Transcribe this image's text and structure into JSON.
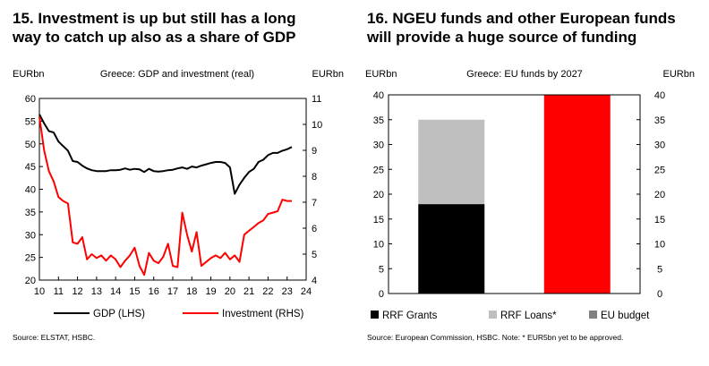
{
  "left_panel": {
    "title_line1": "15. Investment is up but still has a long",
    "title_line2": "way to catch up also as a share of GDP",
    "source": "Source: ELSTAT, HSBC."
  },
  "right_panel": {
    "title_line1": "16. NGEU funds and other European funds",
    "title_line2": "will provide a huge source of funding",
    "source": "Source: European Commission, HSBC. Note: * EUR5bn yet to be approved."
  },
  "chart_data": [
    {
      "type": "line",
      "title": "Greece: GDP and investment (real)",
      "ylabel_left": "EURbn",
      "ylabel_right": "EURbn",
      "ylim_left": [
        20,
        60
      ],
      "ylim_right": [
        4,
        11
      ],
      "xlim": [
        10,
        24
      ],
      "x_ticks": [
        "10",
        "11",
        "12",
        "13",
        "14",
        "15",
        "16",
        "17",
        "18",
        "19",
        "20",
        "21",
        "22",
        "23",
        "24"
      ],
      "y_ticks_left": [
        "20",
        "25",
        "30",
        "35",
        "40",
        "45",
        "50",
        "55",
        "60"
      ],
      "y_ticks_right": [
        "4",
        "5",
        "6",
        "7",
        "8",
        "9",
        "10",
        "11"
      ],
      "legend_position": "bottom",
      "series": [
        {
          "name": "GDP (LHS)",
          "axis": "left",
          "color": "#000000",
          "points": [
            [
              10.0,
              56.5
            ],
            [
              10.25,
              54.5
            ],
            [
              10.5,
              52.8
            ],
            [
              10.75,
              52.5
            ],
            [
              11.0,
              50.5
            ],
            [
              11.25,
              49.5
            ],
            [
              11.5,
              48.5
            ],
            [
              11.75,
              46.2
            ],
            [
              12.0,
              46.0
            ],
            [
              12.25,
              45.2
            ],
            [
              12.5,
              44.6
            ],
            [
              12.75,
              44.2
            ],
            [
              13.0,
              44.0
            ],
            [
              13.25,
              44.0
            ],
            [
              13.5,
              44.0
            ],
            [
              13.75,
              44.2
            ],
            [
              14.0,
              44.2
            ],
            [
              14.25,
              44.3
            ],
            [
              14.5,
              44.6
            ],
            [
              14.75,
              44.3
            ],
            [
              15.0,
              44.5
            ],
            [
              15.25,
              44.4
            ],
            [
              15.5,
              43.8
            ],
            [
              15.75,
              44.5
            ],
            [
              16.0,
              44.0
            ],
            [
              16.25,
              43.9
            ],
            [
              16.5,
              44.0
            ],
            [
              16.75,
              44.2
            ],
            [
              17.0,
              44.3
            ],
            [
              17.25,
              44.6
            ],
            [
              17.5,
              44.8
            ],
            [
              17.75,
              44.5
            ],
            [
              18.0,
              45.0
            ],
            [
              18.25,
              44.8
            ],
            [
              18.5,
              45.2
            ],
            [
              18.75,
              45.5
            ],
            [
              19.0,
              45.8
            ],
            [
              19.25,
              46.0
            ],
            [
              19.5,
              46.0
            ],
            [
              19.75,
              45.8
            ],
            [
              20.0,
              44.8
            ],
            [
              20.25,
              39.0
            ],
            [
              20.5,
              41.0
            ],
            [
              20.75,
              42.5
            ],
            [
              21.0,
              43.8
            ],
            [
              21.25,
              44.5
            ],
            [
              21.5,
              46.0
            ],
            [
              21.75,
              46.5
            ],
            [
              22.0,
              47.5
            ],
            [
              22.25,
              48.0
            ],
            [
              22.5,
              48.0
            ],
            [
              22.75,
              48.5
            ],
            [
              23.0,
              48.8
            ],
            [
              23.25,
              49.3
            ]
          ]
        },
        {
          "name": "Investment (RHS)",
          "axis": "right",
          "color": "#ff0000",
          "points": [
            [
              10.0,
              10.3
            ],
            [
              10.25,
              9.0
            ],
            [
              10.5,
              8.2
            ],
            [
              10.75,
              7.8
            ],
            [
              11.0,
              7.2
            ],
            [
              11.25,
              7.05
            ],
            [
              11.5,
              6.95
            ],
            [
              11.75,
              5.45
            ],
            [
              12.0,
              5.4
            ],
            [
              12.25,
              5.65
            ],
            [
              12.5,
              4.8
            ],
            [
              12.75,
              5.0
            ],
            [
              13.0,
              4.85
            ],
            [
              13.25,
              4.95
            ],
            [
              13.5,
              4.75
            ],
            [
              13.75,
              4.95
            ],
            [
              14.0,
              4.8
            ],
            [
              14.25,
              4.5
            ],
            [
              14.5,
              4.75
            ],
            [
              14.75,
              4.95
            ],
            [
              15.0,
              5.25
            ],
            [
              15.25,
              4.55
            ],
            [
              15.5,
              4.2
            ],
            [
              15.75,
              5.05
            ],
            [
              16.0,
              4.75
            ],
            [
              16.25,
              4.65
            ],
            [
              16.5,
              4.9
            ],
            [
              16.75,
              5.4
            ],
            [
              17.0,
              4.55
            ],
            [
              17.25,
              4.5
            ],
            [
              17.5,
              6.6
            ],
            [
              17.75,
              5.75
            ],
            [
              18.0,
              5.1
            ],
            [
              18.25,
              5.85
            ],
            [
              18.5,
              4.55
            ],
            [
              18.75,
              4.7
            ],
            [
              19.0,
              4.85
            ],
            [
              19.25,
              4.95
            ],
            [
              19.5,
              4.85
            ],
            [
              19.75,
              5.05
            ],
            [
              20.0,
              4.8
            ],
            [
              20.25,
              4.95
            ],
            [
              20.5,
              4.7
            ],
            [
              20.75,
              5.75
            ],
            [
              21.0,
              5.9
            ],
            [
              21.25,
              6.05
            ],
            [
              21.5,
              6.2
            ],
            [
              21.75,
              6.3
            ],
            [
              22.0,
              6.55
            ],
            [
              22.25,
              6.6
            ],
            [
              22.5,
              6.65
            ],
            [
              22.75,
              7.1
            ],
            [
              23.0,
              7.05
            ],
            [
              23.25,
              7.05
            ]
          ]
        }
      ]
    },
    {
      "type": "bar",
      "title": "Greece: EU funds by 2027",
      "ylabel_left": "EURbn",
      "ylabel_right": "EURbn",
      "ylim": [
        0,
        40
      ],
      "y_ticks": [
        "0",
        "5",
        "10",
        "15",
        "20",
        "25",
        "30",
        "35",
        "40"
      ],
      "stacked": true,
      "legend_position": "bottom",
      "bars": [
        {
          "segments": [
            {
              "series": "RRF Grants",
              "value": 18
            },
            {
              "series": "RRF Loans*",
              "value": 17
            }
          ]
        },
        {
          "segments": [
            {
              "series": "EU budget",
              "value": 40
            }
          ]
        }
      ],
      "series": [
        {
          "name": "RRF Grants",
          "color": "#000000"
        },
        {
          "name": "RRF Loans*",
          "color": "#bfbfbf"
        },
        {
          "name": "EU budget",
          "color": "#ff0000",
          "legend_color": "#808080"
        }
      ]
    }
  ]
}
